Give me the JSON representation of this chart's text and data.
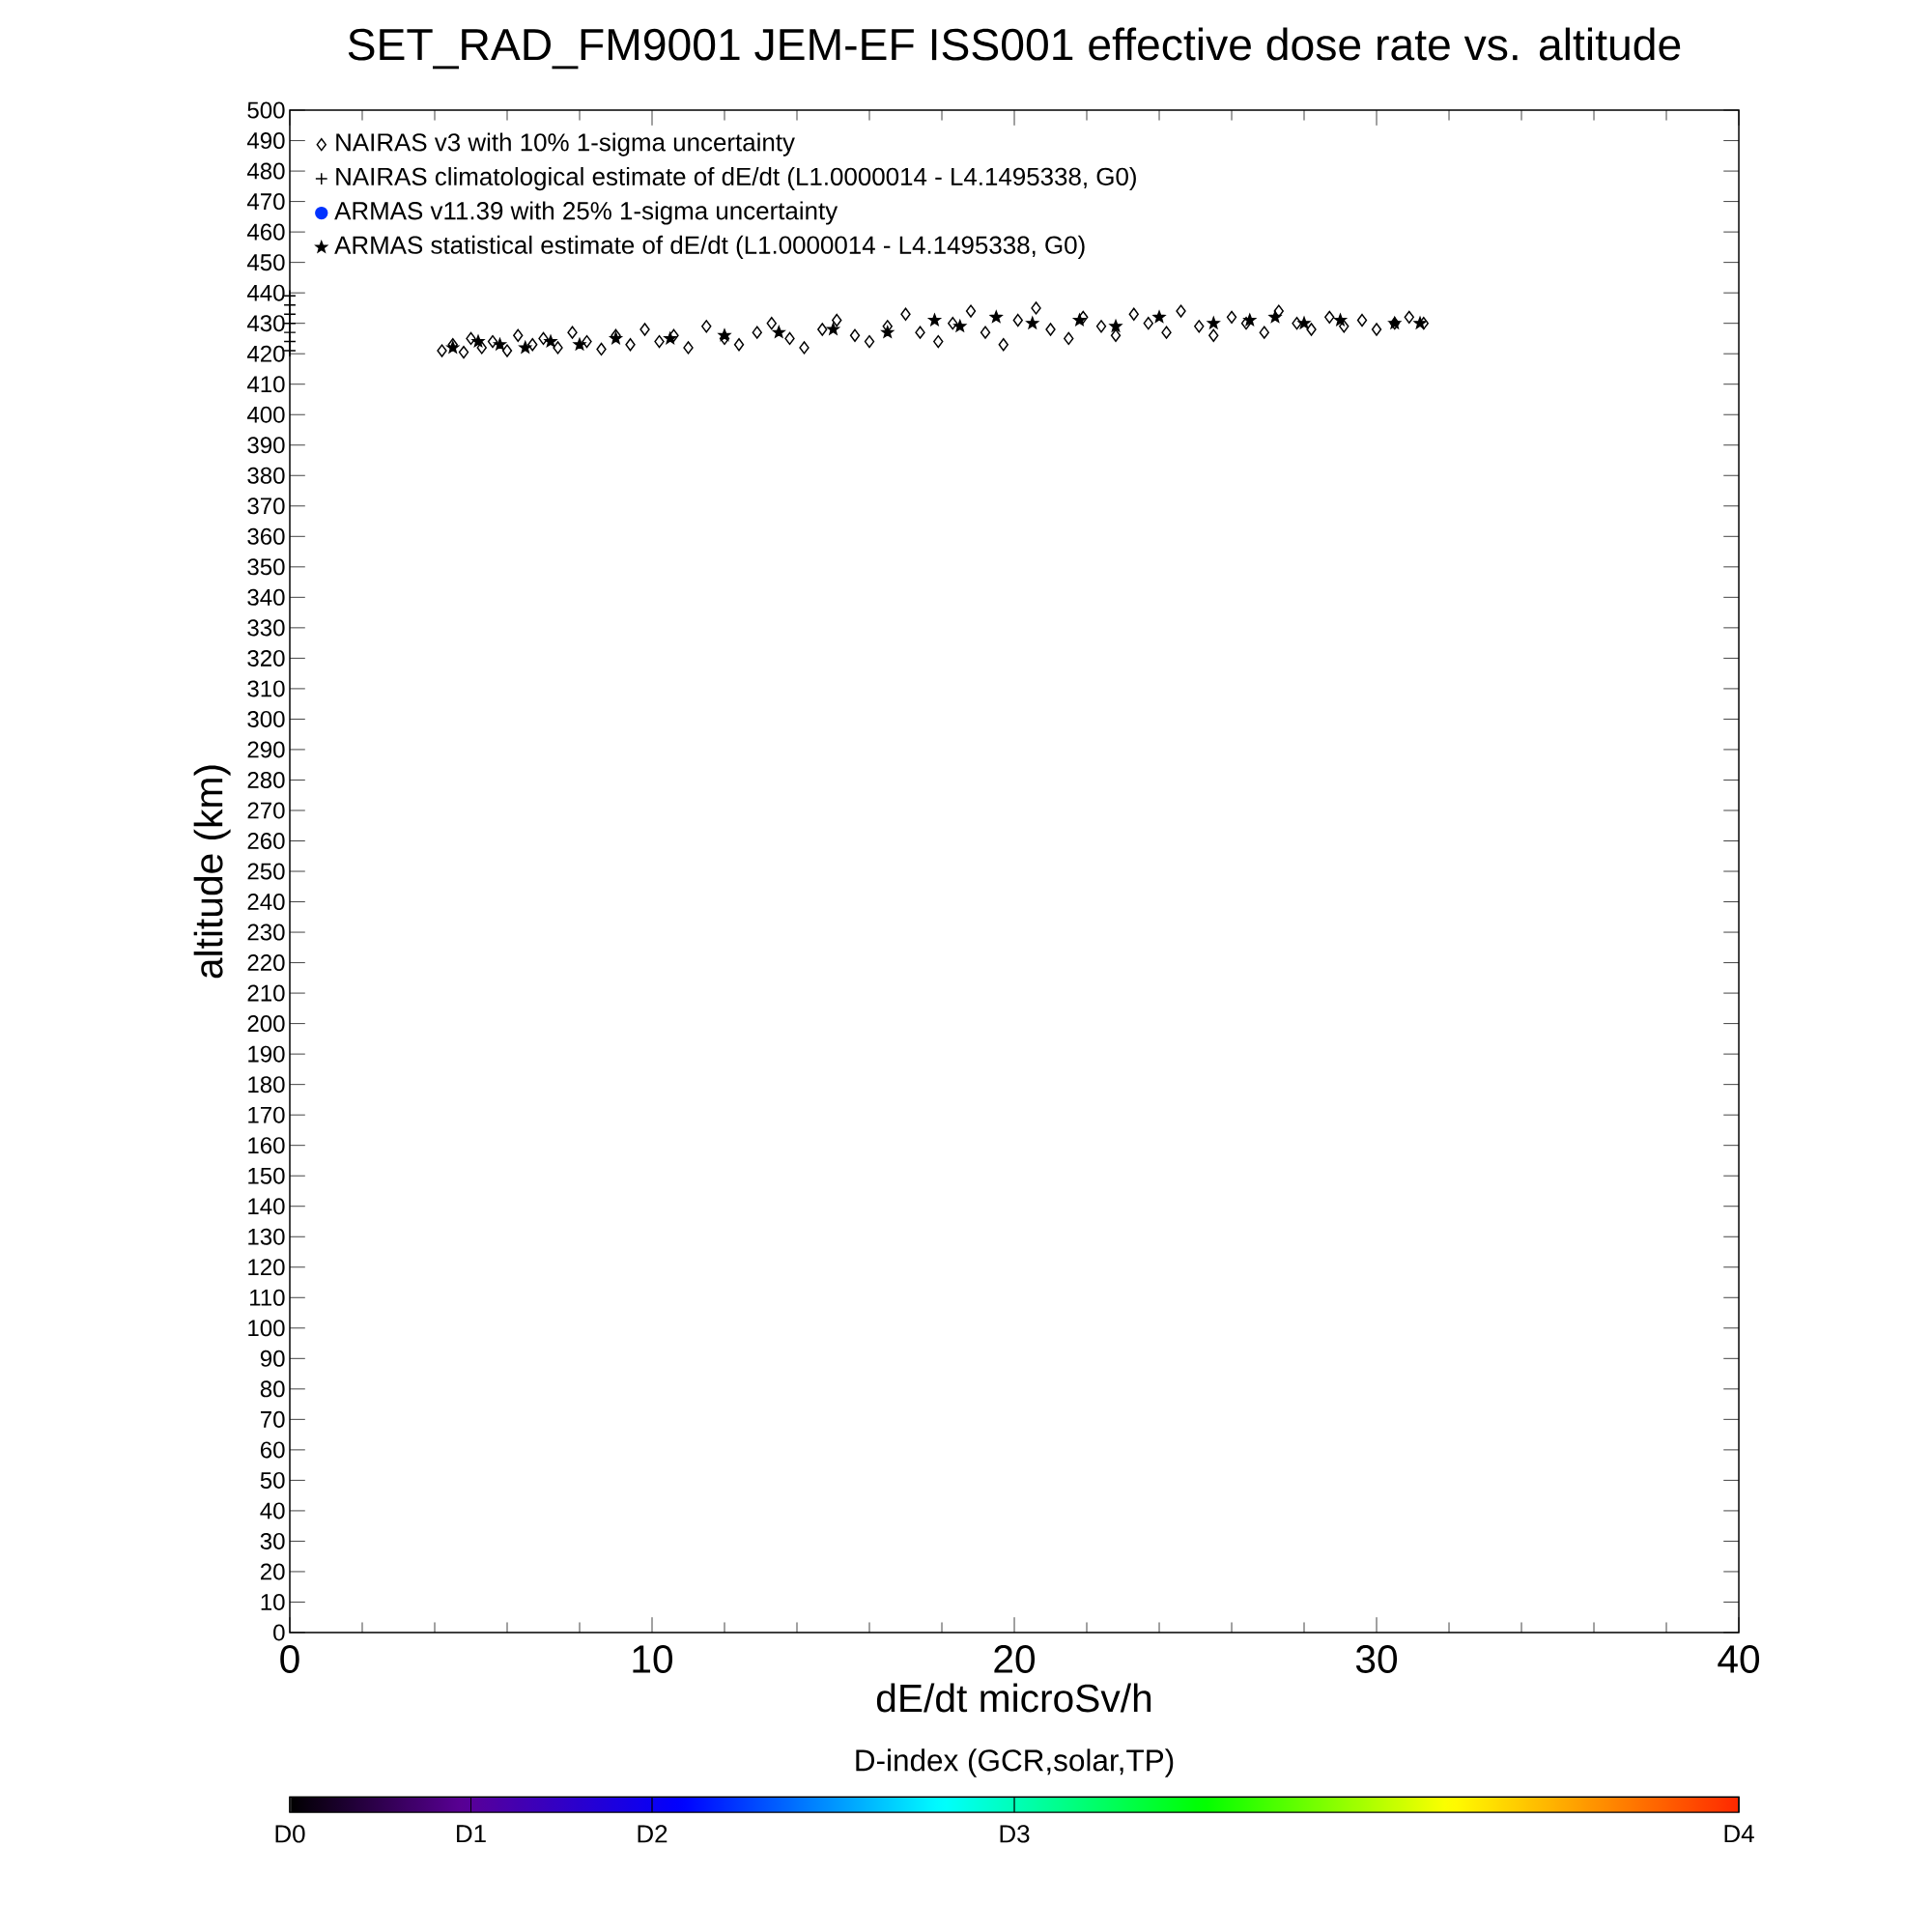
{
  "chart_data": {
    "type": "scatter",
    "title": "SET_RAD_FM9001  JEM-EF ISS001 effective dose rate vs. altitude",
    "xlabel": "dE/dt microSv/h",
    "ylabel": "altitude (km)",
    "clabel": "D-index (GCR,solar,TP)",
    "xlim": [
      0,
      40
    ],
    "xticks": [
      0,
      10,
      20,
      30,
      40
    ],
    "ylim": [
      0,
      500
    ],
    "yticks": [
      0,
      10,
      20,
      30,
      40,
      50,
      60,
      70,
      80,
      90,
      100,
      110,
      120,
      130,
      140,
      150,
      160,
      170,
      180,
      190,
      200,
      210,
      220,
      230,
      240,
      250,
      260,
      270,
      280,
      290,
      300,
      310,
      320,
      330,
      340,
      350,
      360,
      370,
      380,
      390,
      400,
      410,
      420,
      430,
      440,
      450,
      460,
      470,
      480,
      490,
      500
    ],
    "clim": [
      0,
      1
    ],
    "cticks": [
      {
        "value": 0,
        "label": "D0"
      },
      {
        "value": 0.125,
        "label": "D1"
      },
      {
        "value": 0.25,
        "label": "D2"
      },
      {
        "value": 0.5,
        "label": "D3"
      },
      {
        "value": 1,
        "label": "D4"
      }
    ],
    "legend": "top left",
    "grid": false,
    "series": [
      {
        "name": "NAIRAS v3 with 10% 1-sigma uncertainty",
        "color": "#000000",
        "marker": "diamond",
        "x": [
          4.2,
          4.5,
          4.8,
          5.0,
          5.3,
          5.6,
          6.0,
          6.3,
          6.7,
          7.0,
          7.4,
          7.8,
          8.2,
          8.6,
          9.0,
          9.4,
          9.8,
          10.2,
          10.6,
          11.0,
          11.5,
          12.0,
          12.4,
          12.9,
          13.3,
          13.8,
          14.2,
          14.7,
          15.1,
          15.6,
          16.0,
          16.5,
          17.0,
          17.4,
          17.9,
          18.3,
          18.8,
          19.2,
          19.7,
          20.1,
          20.6,
          21.0,
          21.5,
          21.9,
          22.4,
          22.8,
          23.3,
          23.7,
          24.2,
          24.6,
          25.1,
          25.5,
          26.0,
          26.4,
          26.9,
          27.3,
          27.8,
          28.2,
          28.7,
          29.1,
          29.6,
          30.0,
          30.5,
          30.9,
          31.3
        ],
        "values": [
          421,
          423,
          420.5,
          425,
          422,
          424,
          421,
          426,
          423,
          425,
          422,
          427,
          424,
          421.5,
          426,
          423,
          428,
          424,
          426,
          422,
          429,
          425,
          423,
          427,
          430,
          425,
          422,
          428,
          431,
          426,
          424,
          429,
          433,
          427,
          424,
          430,
          434,
          427,
          423,
          431,
          435,
          428,
          425,
          432,
          429,
          426,
          433,
          430,
          427,
          434,
          429,
          426,
          432,
          430,
          427,
          434,
          430,
          428,
          432,
          429,
          431,
          428,
          430,
          432,
          430
        ]
      },
      {
        "name": "NAIRAS climatological estimate of dE/dt (L1.0000014 - L4.1495338, G0)",
        "color": "#000000",
        "marker": "cross",
        "x": [
          0,
          0,
          0,
          0,
          0,
          0,
          0
        ],
        "values": [
          421,
          424,
          427,
          430,
          433,
          436,
          439
        ]
      },
      {
        "name": "ARMAS v11.39 with 25% 1-sigma uncertainty",
        "color": "#0033ff",
        "marker": "circle"
      },
      {
        "name": "ARMAS statistical estimate of dE/dt (L1.0000014 - L4.1495338, G0)",
        "color": "#000000",
        "marker": "star",
        "x": [
          4.5,
          5.2,
          5.8,
          6.5,
          7.2,
          8.0,
          9.0,
          10.5,
          12.0,
          13.5,
          15.0,
          16.5,
          17.8,
          18.5,
          19.5,
          20.5,
          21.8,
          22.8,
          24.0,
          25.5,
          26.5,
          27.2,
          28.0,
          29.0,
          30.5,
          31.2
        ],
        "values": [
          422,
          424,
          423,
          422,
          424,
          423,
          425,
          425,
          426,
          427,
          428,
          427,
          431,
          429,
          432,
          430,
          431,
          429,
          432,
          430,
          431,
          432,
          430,
          431,
          430,
          430
        ]
      }
    ]
  }
}
